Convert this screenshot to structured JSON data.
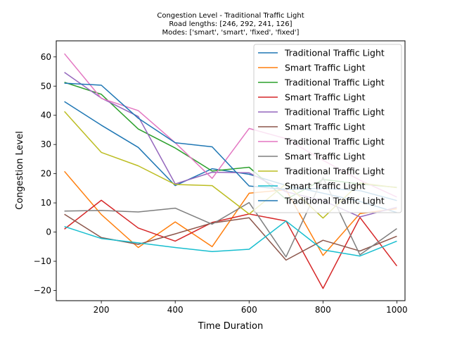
{
  "chart_data": {
    "type": "line",
    "title_lines": [
      "Congestion Level - Traditional Traffic Light",
      "Road lengths: [246, 292, 241, 126]",
      "Modes: ['smart', 'smart', 'fixed', 'fixed']"
    ],
    "xlabel": "Time Duration",
    "ylabel": "Congestion Level",
    "xlim": [
      78,
      1022
    ],
    "ylim": [
      -23.5,
      65.5
    ],
    "xticks": [
      200,
      400,
      600,
      800,
      1000
    ],
    "yticks": [
      -20,
      -10,
      0,
      10,
      20,
      30,
      40,
      50,
      60
    ],
    "grid": false,
    "legend_position": "top-right",
    "x": [
      100,
      200,
      300,
      400,
      500,
      600,
      700,
      800,
      900,
      1000
    ],
    "series": [
      {
        "name": "Traditional Traffic Light",
        "color": "#1f77b4",
        "values": [
          44.7,
          36.6,
          29.0,
          15.9,
          21.7,
          19.8,
          16.0,
          13.3,
          10.5,
          6.7
        ]
      },
      {
        "name": "Smart Traffic Light",
        "color": "#ff7f0e",
        "values": [
          20.8,
          6.0,
          -5.3,
          3.5,
          -5.0,
          13.3,
          14.5,
          -8.0,
          6.3,
          8.0
        ]
      },
      {
        "name": "Traditional Traffic Light",
        "color": "#2ca02c",
        "values": [
          51.3,
          47.2,
          35.3,
          28.8,
          20.9,
          22.2,
          11.2,
          18.0,
          16.5,
          15.3
        ]
      },
      {
        "name": "Smart Traffic Light",
        "color": "#d62728",
        "values": [
          1.0,
          10.9,
          1.4,
          -3.1,
          3.3,
          6.2,
          3.8,
          -19.3,
          5.0,
          -11.6
        ]
      },
      {
        "name": "Traditional Traffic Light",
        "color": "#9467bd",
        "values": [
          54.7,
          45.9,
          39.6,
          16.5,
          20.5,
          20.3,
          13.8,
          10.8,
          5.2,
          8.5
        ]
      },
      {
        "name": "Smart Traffic Light",
        "color": "#8c564b",
        "values": [
          6.1,
          -1.9,
          -4.2,
          -0.6,
          3.1,
          4.9,
          -9.6,
          -2.8,
          -6.5,
          -1.4
        ]
      },
      {
        "name": "Traditional Traffic Light",
        "color": "#e377c2",
        "values": [
          61.1,
          45.8,
          41.6,
          30.6,
          18.4,
          35.5,
          32.0,
          24.6,
          17.8,
          12.0
        ]
      },
      {
        "name": "Smart Traffic Light",
        "color": "#7f7f7f",
        "values": [
          7.2,
          7.4,
          6.9,
          8.2,
          2.7,
          10.1,
          -8.5,
          18.7,
          -7.8,
          1.2
        ]
      },
      {
        "name": "Traditional Traffic Light",
        "color": "#bcbd22",
        "values": [
          41.3,
          27.3,
          22.7,
          16.3,
          15.9,
          6.2,
          16.5,
          4.8,
          16.8,
          15.2
        ]
      },
      {
        "name": "Smart Traffic Light",
        "color": "#17becf",
        "values": [
          1.9,
          -2.2,
          -3.7,
          -5.3,
          -6.7,
          -5.9,
          3.8,
          -6.1,
          -8.2,
          -3.1
        ]
      },
      {
        "name": "Traditional Traffic Light",
        "color": "#1f77b4",
        "values": [
          51.0,
          50.3,
          39.0,
          30.6,
          29.2,
          15.8,
          14.6,
          15.0,
          14.2,
          10.8
        ]
      }
    ]
  }
}
